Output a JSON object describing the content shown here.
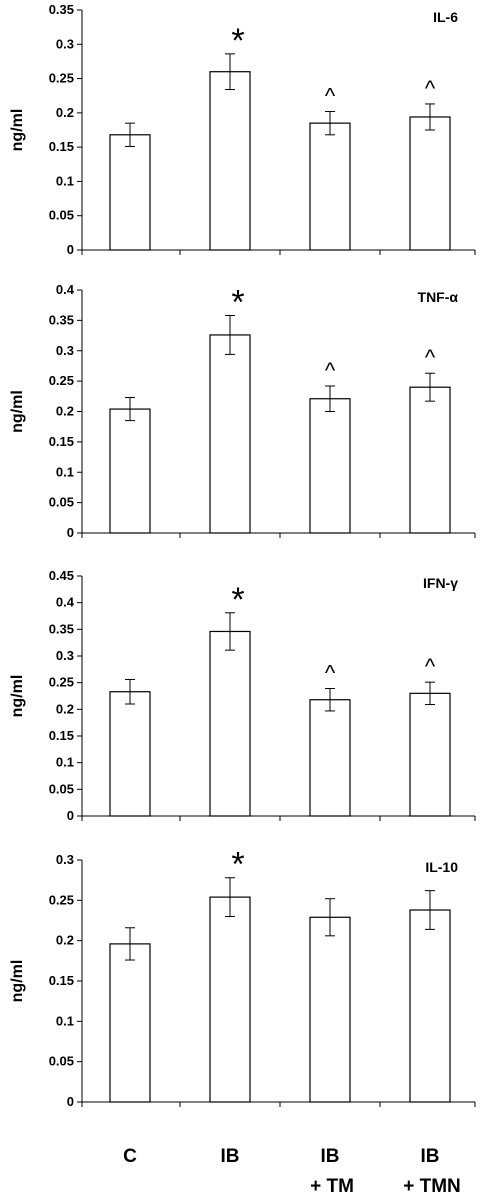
{
  "x_labels": [
    [
      "C"
    ],
    [
      "IB"
    ],
    [
      "IB",
      "+ TM"
    ],
    [
      "IB",
      "+ TMN"
    ]
  ],
  "chart_data": [
    {
      "type": "bar",
      "title": "IL-6",
      "ylabel": "ng/ml",
      "categories": [
        "C",
        "IB",
        "IB + TM",
        "IB + TMN"
      ],
      "values": [
        0.168,
        0.26,
        0.185,
        0.194
      ],
      "errors": [
        0.017,
        0.026,
        0.017,
        0.019
      ],
      "markers": [
        "",
        "*",
        "^",
        "^"
      ],
      "ylim": [
        0,
        0.35
      ],
      "yticks": [
        "0",
        "0.05",
        "0.1",
        "0.15",
        "0.2",
        "0.25",
        "0.3",
        "0.35"
      ],
      "grid": false
    },
    {
      "type": "bar",
      "title": "TNF-α",
      "ylabel": "ng/ml",
      "categories": [
        "C",
        "IB",
        "IB + TM",
        "IB + TMN"
      ],
      "values": [
        0.204,
        0.326,
        0.221,
        0.24
      ],
      "errors": [
        0.019,
        0.032,
        0.021,
        0.023
      ],
      "markers": [
        "",
        "*",
        "^",
        "^"
      ],
      "ylim": [
        0,
        0.4
      ],
      "yticks": [
        "0",
        "0.05",
        "0.1",
        "0.15",
        "0.2",
        "0.25",
        "0.3",
        "0.35",
        "0.4"
      ],
      "grid": false
    },
    {
      "type": "bar",
      "title": "IFN-γ",
      "ylabel": "ng/ml",
      "categories": [
        "C",
        "IB",
        "IB + TM",
        "IB + TMN"
      ],
      "values": [
        0.233,
        0.346,
        0.218,
        0.23
      ],
      "errors": [
        0.023,
        0.035,
        0.021,
        0.021
      ],
      "markers": [
        "",
        "*",
        "^",
        "^"
      ],
      "ylim": [
        0,
        0.45
      ],
      "yticks": [
        "0",
        "0.05",
        "0.1",
        "0.15",
        "0.2",
        "0.25",
        "0.3",
        "0.35",
        "0.4",
        "0.45"
      ],
      "grid": false
    },
    {
      "type": "bar",
      "title": "IL-10",
      "ylabel": "ng/ml",
      "categories": [
        "C",
        "IB",
        "IB + TM",
        "IB + TMN"
      ],
      "values": [
        0.196,
        0.254,
        0.229,
        0.238
      ],
      "errors": [
        0.02,
        0.024,
        0.023,
        0.024
      ],
      "markers": [
        "",
        "*",
        "",
        ""
      ],
      "ylim": [
        0,
        0.3
      ],
      "yticks": [
        "0",
        "0.05",
        "0.1",
        "0.15",
        "0.2",
        "0.25",
        "0.3"
      ],
      "grid": false
    }
  ]
}
